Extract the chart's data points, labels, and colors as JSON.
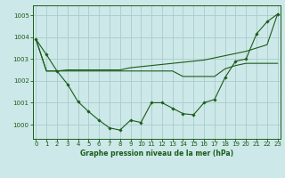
{
  "title": "Graphe pression niveau de la mer (hPa)",
  "bg": "#cde8e8",
  "grid_color": "#a8cccc",
  "lc": "#1a5c1a",
  "xlim": [
    -0.3,
    23.3
  ],
  "ylim": [
    999.35,
    1005.45
  ],
  "yticks": [
    1000,
    1001,
    1002,
    1003,
    1004,
    1005
  ],
  "xticks": [
    0,
    1,
    2,
    3,
    4,
    5,
    6,
    7,
    8,
    9,
    10,
    11,
    12,
    13,
    14,
    15,
    16,
    17,
    18,
    19,
    20,
    21,
    22,
    23
  ],
  "s1": [
    1003.9,
    1003.2,
    1002.45,
    1001.85,
    1001.05,
    1000.6,
    1000.2,
    999.85,
    999.75,
    1000.2,
    1000.1,
    1001.0,
    1001.0,
    1000.75,
    1000.5,
    1000.45,
    1001.0,
    1001.15,
    1002.15,
    1002.9,
    1003.0,
    1004.15,
    1004.7,
    1005.05
  ],
  "s2": [
    1003.9,
    1002.45,
    1002.45,
    1002.5,
    1002.5,
    1002.5,
    1002.5,
    1002.5,
    1002.5,
    1002.6,
    1002.65,
    1002.7,
    1002.75,
    1002.8,
    1002.85,
    1002.9,
    1002.95,
    1003.05,
    1003.15,
    1003.25,
    1003.35,
    1003.5,
    1003.65,
    1005.05
  ],
  "s3": [
    1003.9,
    1002.45,
    1002.45,
    1002.45,
    1002.45,
    1002.45,
    1002.45,
    1002.45,
    1002.45,
    1002.45,
    1002.45,
    1002.45,
    1002.45,
    1002.45,
    1002.2,
    1002.2,
    1002.2,
    1002.2,
    1002.55,
    1002.7,
    1002.8,
    1002.8,
    1002.8,
    1002.8
  ]
}
